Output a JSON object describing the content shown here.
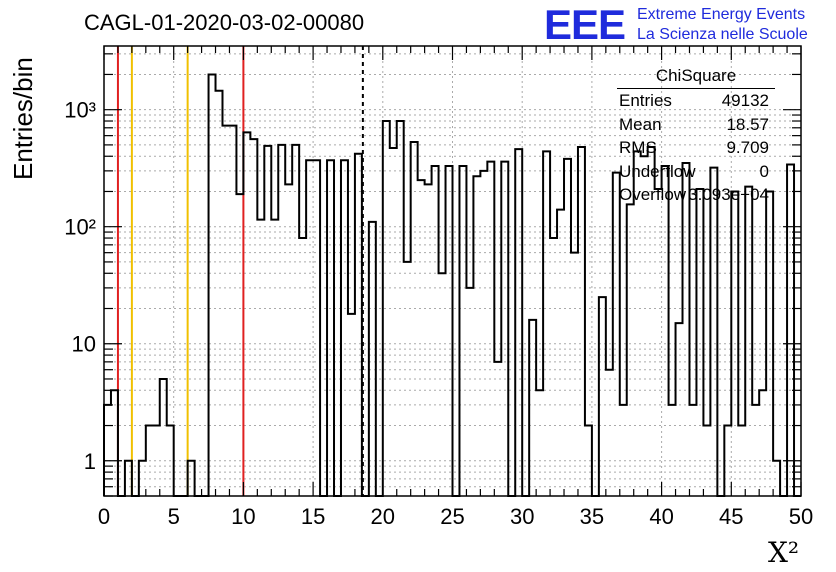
{
  "header": {
    "title": "CAGL-01-2020-03-02-00080",
    "logo_text": "EEE",
    "logo_line1": "Extreme Energy Events",
    "logo_line2": "La Scienza nelle Scuole"
  },
  "stats_box": {
    "title": "ChiSquare",
    "rows": [
      {
        "key": "Entries",
        "value": "49132"
      },
      {
        "key": "Mean",
        "value": "18.57"
      },
      {
        "key": "RMS",
        "value": "9.709"
      },
      {
        "key": "Underflow",
        "value": "0"
      },
      {
        "key": "Overflow",
        "value": "3.093e+04"
      }
    ]
  },
  "chart_data": {
    "type": "bar",
    "style": "step-histogram",
    "title": "CAGL-01-2020-03-02-00080",
    "xlabel": "X²",
    "ylabel": "Entries/bin",
    "xlim": [
      0,
      50
    ],
    "ylim": [
      0.5,
      3500
    ],
    "yscale": "log",
    "grid": true,
    "bin_width": 0.5,
    "x_ticks": [
      "0",
      "5",
      "10",
      "15",
      "20",
      "25",
      "30",
      "35",
      "40",
      "45",
      "50"
    ],
    "y_ticks": [
      "1",
      "10",
      "10²",
      "10³"
    ],
    "bin_counts": [
      3,
      4,
      0,
      1,
      0,
      1,
      2,
      2,
      5,
      2,
      0,
      0,
      1,
      0,
      0,
      2000,
      1450,
      730,
      730,
      190,
      640,
      560,
      115,
      490,
      115,
      500,
      230,
      500,
      80,
      370,
      370,
      0,
      370,
      0,
      370,
      18,
      420,
      0,
      110,
      0,
      800,
      470,
      800,
      50,
      530,
      250,
      230,
      330,
      40,
      330,
      0,
      330,
      30,
      270,
      300,
      360,
      7,
      360,
      0,
      460,
      0,
      16,
      4,
      440,
      80,
      140,
      380,
      60,
      480,
      2,
      0,
      25,
      6,
      290,
      3,
      155,
      440,
      400,
      480,
      210,
      330,
      3,
      15,
      350,
      3,
      210,
      2,
      320,
      0,
      2,
      200,
      2,
      220,
      3,
      4,
      200,
      1,
      0,
      340,
      0
    ],
    "vertical_lines": [
      {
        "x": 1,
        "color": "#e02020",
        "style": "solid"
      },
      {
        "x": 2,
        "color": "#f0c000",
        "style": "solid"
      },
      {
        "x": 6,
        "color": "#f0c000",
        "style": "solid"
      },
      {
        "x": 10,
        "color": "#e02020",
        "style": "solid"
      },
      {
        "x": 18.57,
        "color": "#000000",
        "style": "dashed"
      }
    ],
    "legend": "none"
  }
}
